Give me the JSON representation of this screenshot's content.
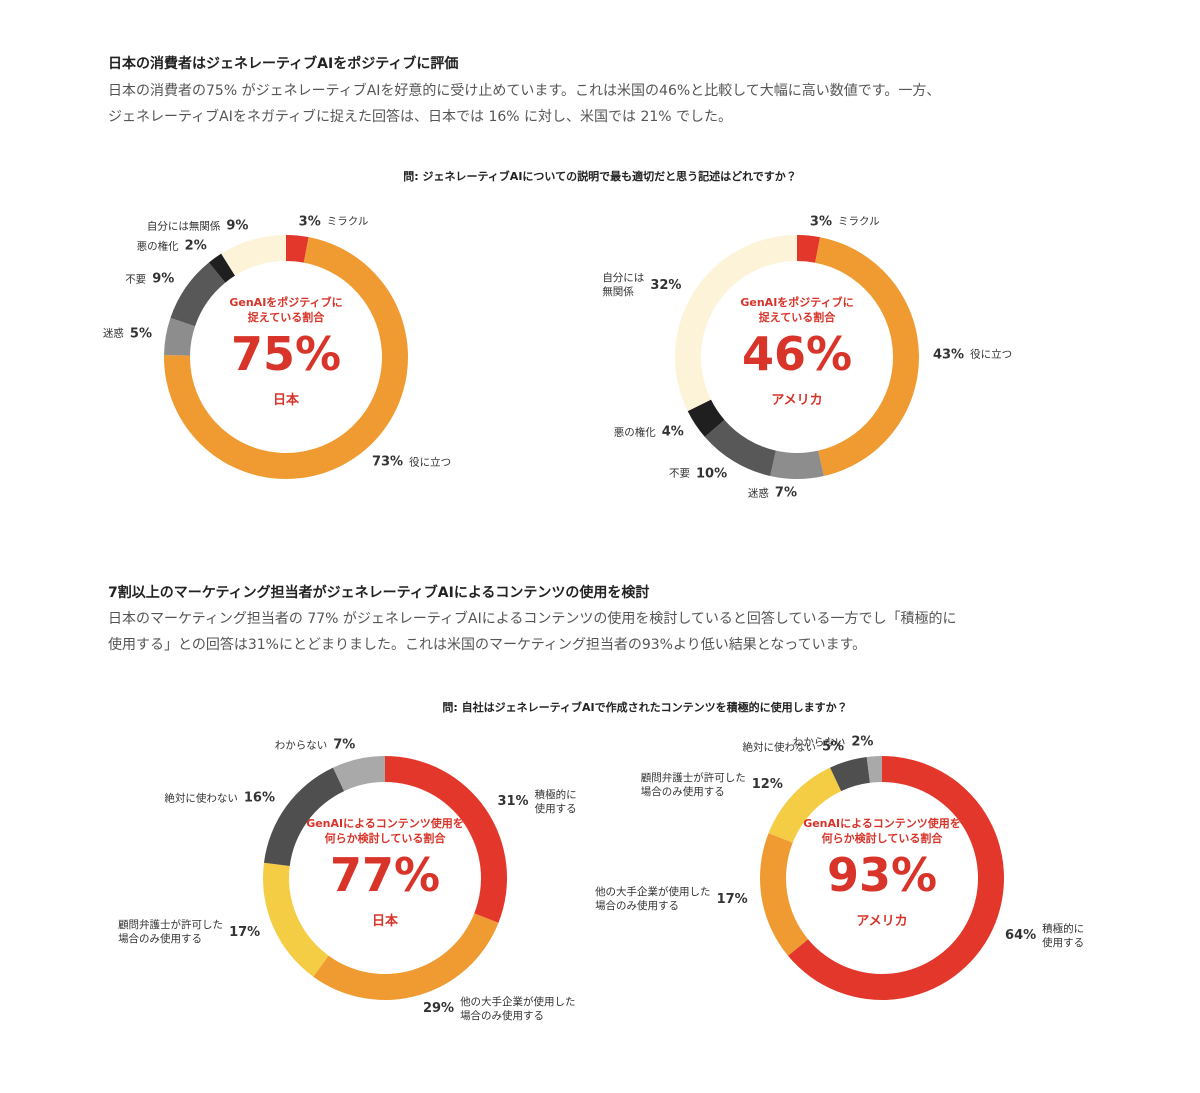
{
  "sections": [
    {
      "heading": "日本の消費者はジェネレーティブAIをポジティブに評価",
      "lines": [
        "日本の消費者の75% がジェネレーティブAIを好意的に受け止めています。これは米国の46%と比較して大幅に高い数値です。一方、",
        "ジェネレーティブAIをネガティブに捉えた回答は、日本では 16% に対し、米国では 21% でした。"
      ],
      "question": "問: ジェネレーティブAIについての説明で最も適切だと思う記述はどれですか？"
    },
    {
      "heading": "7割以上のマーケティング担当者がジェネレーティブAIによるコンテンツの使用を検討",
      "lines": [
        "日本のマーケティング担当者の 77% がジェネレーティブAIによるコンテンツの使用を検討していると回答している一方でし「積極的に",
        "使用する」との回答は31%にとどまりました。これは米国のマーケティング担当者の93%より低い結果となっています。"
      ],
      "question": "問: 自社はジェネレーティブAIで作成されたコンテンツを積極的に使用しますか？"
    }
  ],
  "chart_data": [
    {
      "type": "donut",
      "center_caption": "GenAIをポジティブに\n捉えている割合",
      "center_value": {
        "value": 75,
        "label": "75%"
      },
      "center_label": "日本",
      "categories": [
        "ミラクル",
        "役に立つ",
        "迷惑",
        "不要",
        "悪の権化",
        "自分には無関係"
      ],
      "values": [
        3,
        73,
        5,
        9,
        2,
        9
      ],
      "value_labels": [
        "3%",
        "73%",
        "5%",
        "9%",
        "2%",
        "9%"
      ],
      "colors": [
        "#e2372a",
        "#ef9b31",
        "#8d8d8d",
        "#585858",
        "#1f1f1f",
        "#fdf3d9"
      ]
    },
    {
      "type": "donut",
      "center_caption": "GenAIをポジティブに\n捉えている割合",
      "center_value": {
        "value": 46,
        "label": "46%"
      },
      "center_label": "アメリカ",
      "categories": [
        "ミラクル",
        "役に立つ",
        "迷惑",
        "不要",
        "悪の権化",
        "自分には\n無関係"
      ],
      "values": [
        3,
        43,
        7,
        10,
        4,
        32
      ],
      "value_labels": [
        "3%",
        "43%",
        "7%",
        "10%",
        "4%",
        "32%"
      ],
      "colors": [
        "#e2372a",
        "#ef9b31",
        "#8d8d8d",
        "#585858",
        "#1f1f1f",
        "#fdf3d9"
      ]
    },
    {
      "type": "donut",
      "center_caption": "GenAIによるコンテンツ使用を\n何らか検討している割合",
      "center_value": {
        "value": 77,
        "label": "77%"
      },
      "center_label": "日本",
      "categories": [
        "積極的に\n使用する",
        "他の大手企業が使用した\n場合のみ使用する",
        "顧問弁護士が許可した\n場合のみ使用する",
        "絶対に使わない",
        "わからない"
      ],
      "values": [
        31,
        29,
        17,
        16,
        7
      ],
      "value_labels": [
        "31%",
        "29%",
        "17%",
        "16%",
        "7%"
      ],
      "colors": [
        "#e2372a",
        "#ef9b31",
        "#f4cd45",
        "#4f4f4f",
        "#a9a9a9"
      ]
    },
    {
      "type": "donut",
      "center_caption": "GenAIによるコンテンツ使用を\n何らか検討している割合",
      "center_value": {
        "value": 93,
        "label": "93%"
      },
      "center_label": "アメリカ",
      "categories": [
        "積極的に\n使用する",
        "他の大手企業が使用した\n場合のみ使用する",
        "顧問弁護士が許可した\n場合のみ使用する",
        "絶対に使わない",
        "わからない"
      ],
      "values": [
        64,
        17,
        12,
        5,
        2
      ],
      "value_labels": [
        "64%",
        "17%",
        "12%",
        "5%",
        "2%"
      ],
      "colors": [
        "#e2372a",
        "#ef9b31",
        "#f4cd45",
        "#4f4f4f",
        "#a9a9a9"
      ]
    }
  ]
}
